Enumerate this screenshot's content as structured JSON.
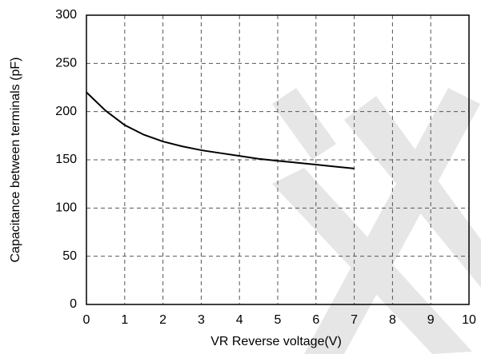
{
  "chart_data": {
    "type": "line",
    "x_label": "VR Reverse voltage(V)",
    "y_label": "Capacitance between terminals  (pF)",
    "series": [
      {
        "name": "Capacitance",
        "color": "#000000",
        "x": [
          0,
          0.5,
          1,
          1.5,
          2,
          2.5,
          3,
          3.5,
          4,
          4.5,
          5,
          5.5,
          6,
          6.5,
          7
        ],
        "values": [
          220,
          201,
          186,
          176,
          169,
          164,
          160,
          157,
          154,
          151,
          149,
          147,
          145,
          143,
          141
        ]
      }
    ],
    "xlim": [
      0,
      10
    ],
    "xticks": [
      0,
      1,
      2,
      3,
      4,
      5,
      6,
      7,
      8,
      9,
      10
    ],
    "ylim": [
      0,
      300
    ],
    "yticks": [
      0,
      50,
      100,
      150,
      200,
      250,
      300
    ],
    "grid": true
  }
}
